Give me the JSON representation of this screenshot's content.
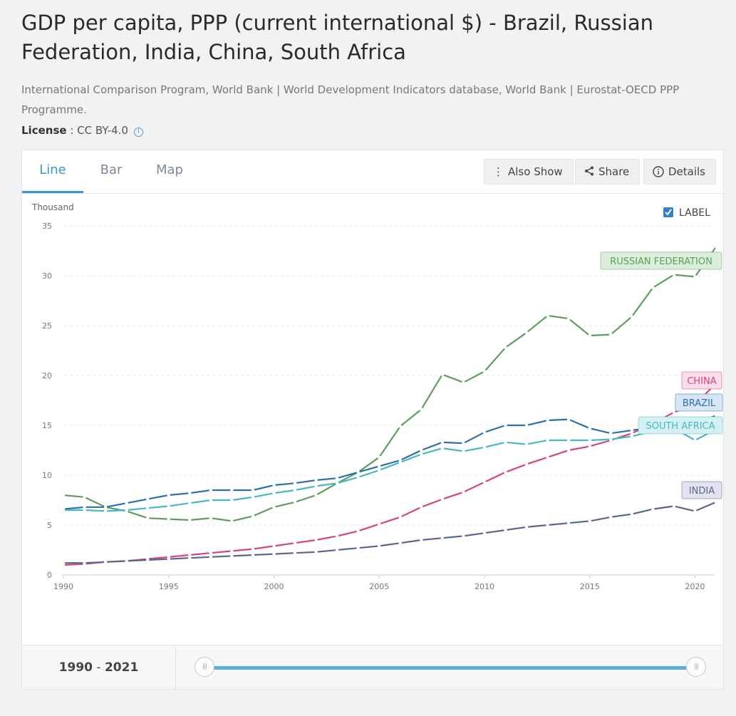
{
  "header": {
    "title": "GDP per capita, PPP (current international $) - Brazil, Russian Federation, India, China, South Africa",
    "source": "International Comparison Program, World Bank | World Development Indicators database, World Bank | Eurostat-OECD PPP Programme.",
    "license_label": "License",
    "license_value": " : CC BY-4.0",
    "info_icon": "info-circle-icon"
  },
  "tabs": [
    {
      "label": "Line"
    },
    {
      "label": "Bar"
    },
    {
      "label": "Map"
    }
  ],
  "toolbar": {
    "also_show": "Also Show",
    "share": "Share",
    "details": "Details"
  },
  "label_toggle": "LABEL",
  "range": {
    "start": "1990",
    "separator": " - ",
    "end": "2021"
  },
  "colors": {
    "accent": "#3a95d6"
  },
  "chart_data": {
    "type": "line",
    "ylabel": "Thousand",
    "ylim": [
      0,
      35
    ],
    "yticks": [
      0,
      5,
      10,
      15,
      20,
      25,
      30,
      35
    ],
    "xlim": [
      1990,
      2021
    ],
    "xticks": [
      1990,
      1995,
      2000,
      2005,
      2010,
      2015,
      2020
    ],
    "grid": true,
    "x": [
      1990,
      1991,
      1992,
      1993,
      1994,
      1995,
      1996,
      1997,
      1998,
      1999,
      2000,
      2001,
      2002,
      2003,
      2004,
      2005,
      2006,
      2007,
      2008,
      2009,
      2010,
      2011,
      2012,
      2013,
      2014,
      2015,
      2016,
      2017,
      2018,
      2019,
      2020,
      2021
    ],
    "series": [
      {
        "name": "RUSSIAN FEDERATION",
        "color": "#5d9e5d",
        "label_fill": "#dbeeda",
        "values": [
          8.0,
          7.8,
          6.8,
          6.4,
          5.7,
          5.6,
          5.5,
          5.7,
          5.4,
          5.9,
          6.8,
          7.3,
          8.0,
          9.2,
          10.3,
          11.8,
          14.9,
          16.6,
          20.1,
          19.3,
          20.4,
          22.8,
          24.3,
          26.0,
          25.7,
          24.0,
          24.1,
          25.9,
          28.8,
          30.1,
          29.9,
          32.9
        ]
      },
      {
        "name": "CHINA",
        "color": "#d6447e",
        "label_fill": "#f9dde9",
        "values": [
          1.0,
          1.1,
          1.3,
          1.4,
          1.6,
          1.8,
          2.0,
          2.2,
          2.4,
          2.6,
          2.9,
          3.2,
          3.5,
          3.9,
          4.4,
          5.1,
          5.8,
          6.8,
          7.6,
          8.3,
          9.3,
          10.3,
          11.1,
          11.8,
          12.5,
          12.9,
          13.5,
          14.2,
          15.2,
          16.3,
          17.1,
          19.2
        ]
      },
      {
        "name": "BRAZIL",
        "color": "#2e6fa8",
        "label_fill": "#d6e6f4",
        "values": [
          6.6,
          6.8,
          6.8,
          7.2,
          7.6,
          8.0,
          8.2,
          8.5,
          8.5,
          8.5,
          9.0,
          9.2,
          9.5,
          9.7,
          10.3,
          10.9,
          11.5,
          12.5,
          13.3,
          13.2,
          14.3,
          15.0,
          15.0,
          15.5,
          15.6,
          14.7,
          14.2,
          14.5,
          14.8,
          15.3,
          15.1,
          16.0
        ]
      },
      {
        "name": "SOUTH AFRICA",
        "color": "#45b8c4",
        "label_fill": "#d5f0f2",
        "values": [
          6.5,
          6.5,
          6.4,
          6.5,
          6.7,
          6.9,
          7.2,
          7.5,
          7.5,
          7.8,
          8.2,
          8.5,
          8.9,
          9.2,
          9.8,
          10.5,
          11.3,
          12.1,
          12.7,
          12.4,
          12.8,
          13.3,
          13.1,
          13.5,
          13.5,
          13.5,
          13.6,
          13.9,
          14.4,
          14.7,
          13.5,
          14.6
        ]
      },
      {
        "name": "INDIA",
        "color": "#5a6691",
        "label_fill": "#e1e3ee",
        "values": [
          1.2,
          1.2,
          1.3,
          1.4,
          1.5,
          1.6,
          1.7,
          1.8,
          1.9,
          2.0,
          2.1,
          2.2,
          2.3,
          2.5,
          2.7,
          2.9,
          3.2,
          3.5,
          3.7,
          3.9,
          4.2,
          4.5,
          4.8,
          5.0,
          5.2,
          5.4,
          5.8,
          6.1,
          6.6,
          6.9,
          6.4,
          7.3
        ]
      }
    ]
  }
}
